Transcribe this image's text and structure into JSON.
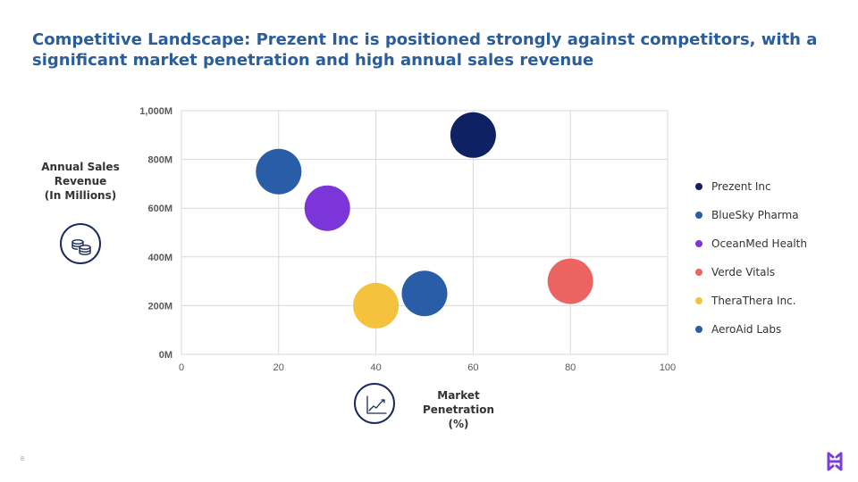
{
  "slide": {
    "title": "Competitive Landscape: Prezent Inc is positioned strongly against competitors, with a significant market penetration and high annual sales revenue",
    "page_number": "8",
    "brand_color": "#7b3fd6",
    "title_color": "#2a5d9c"
  },
  "axis_labels": {
    "y": [
      "Annual Sales",
      "Revenue",
      "(In Millions)"
    ],
    "x": [
      "Market Penetration",
      "(%)"
    ]
  },
  "icons": {
    "y_axis": "coins-icon",
    "x_axis": "line-chart-icon",
    "logo": "brand-logo-icon"
  },
  "chart_data": {
    "type": "scatter",
    "xlim": [
      0,
      100
    ],
    "ylim": [
      0,
      1000
    ],
    "x_ticks": [
      "0",
      "20",
      "40",
      "60",
      "80",
      "100"
    ],
    "y_ticks": [
      "0M",
      "200M",
      "400M",
      "600M",
      "800M",
      "1,000M"
    ],
    "grid": true,
    "legend_position": "right",
    "series": [
      {
        "name": "Prezent Inc",
        "x": 60,
        "y": 900,
        "color": "#0d2163"
      },
      {
        "name": "BlueSky Pharma",
        "x": 20,
        "y": 750,
        "color": "#2a5da8"
      },
      {
        "name": "OceanMed Health",
        "x": 30,
        "y": 600,
        "color": "#7b35d8"
      },
      {
        "name": "Verde Vitals",
        "x": 80,
        "y": 300,
        "color": "#ec6462"
      },
      {
        "name": "TheraThera Inc.",
        "x": 40,
        "y": 200,
        "color": "#f4c23d"
      },
      {
        "name": "AeroAid Labs",
        "x": 50,
        "y": 250,
        "color": "#2a5da8"
      }
    ]
  }
}
